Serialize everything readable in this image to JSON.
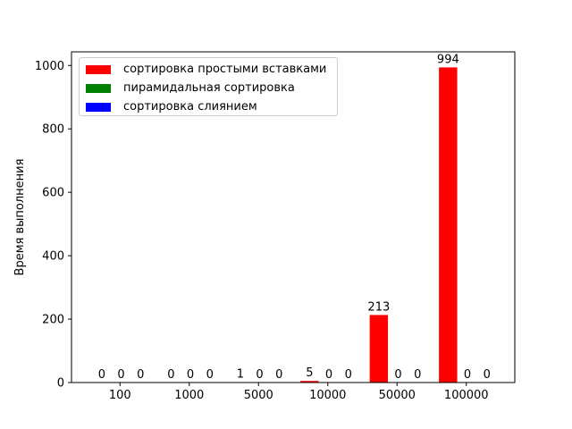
{
  "chart_data": {
    "type": "bar",
    "title": "",
    "xlabel": "",
    "ylabel": "Время выполнения",
    "categories": [
      "100",
      "1000",
      "5000",
      "10000",
      "50000",
      "100000"
    ],
    "series": [
      {
        "name": "сортировка простыми вставками",
        "color": "#ff0000",
        "values": [
          0,
          0,
          1,
          5,
          213,
          994
        ]
      },
      {
        "name": "пирамидальная сортировка",
        "color": "#008000",
        "values": [
          0,
          0,
          0,
          0,
          0,
          0
        ]
      },
      {
        "name": "сортировка слиянием",
        "color": "#0000ff",
        "values": [
          0,
          0,
          0,
          0,
          0,
          0
        ]
      }
    ],
    "ylim": [
      0,
      1043
    ],
    "yticks": [
      0,
      200,
      400,
      600,
      800,
      1000
    ],
    "legend_position": "upper-left",
    "grid": false
  }
}
